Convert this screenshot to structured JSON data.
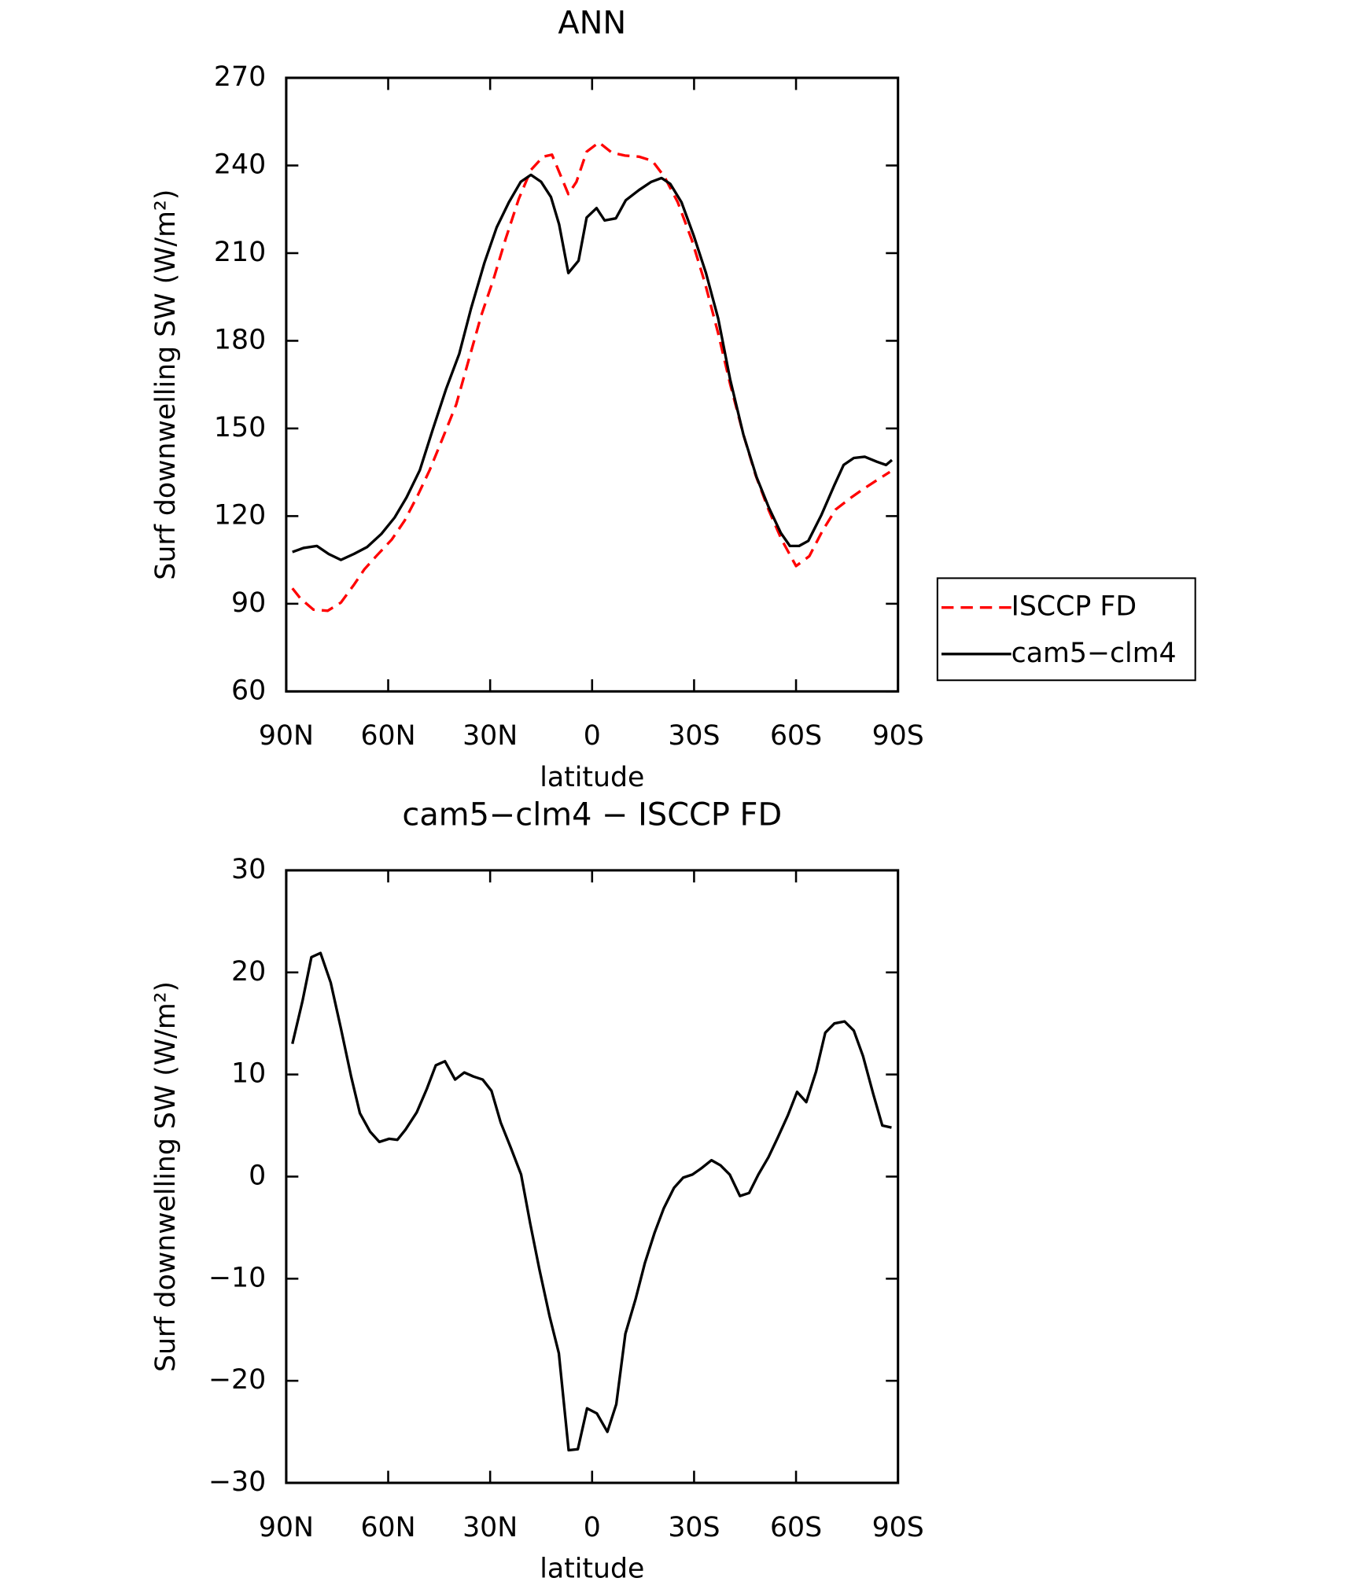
{
  "chart_data": [
    {
      "type": "line",
      "title": "ANN",
      "xlabel": "latitude",
      "ylabel": "Surf downwelling SW (W/m²)",
      "xlim": [
        90,
        -90
      ],
      "xticks": [
        {
          "value": 90,
          "label": "90N"
        },
        {
          "value": 60,
          "label": "60N"
        },
        {
          "value": 30,
          "label": "30N"
        },
        0,
        {
          "value": -30,
          "label": "30S"
        },
        {
          "value": -60,
          "label": "60S"
        },
        {
          "value": -90,
          "label": "90S"
        }
      ],
      "ylim": [
        60,
        270
      ],
      "yticks": [
        60,
        90,
        120,
        150,
        180,
        210,
        240,
        270
      ],
      "series": [
        {
          "name": "ISCCP FD",
          "color": "#ff0000",
          "dash": true,
          "x": [
            88.2,
            85.8,
            82,
            77.8,
            73.9,
            70,
            67,
            63.2,
            59,
            55.2,
            51.3,
            47.8,
            43.9,
            40,
            36.4,
            32.6,
            29,
            25.4,
            21.6,
            18,
            14.4,
            11.8,
            9.7,
            7,
            4.6,
            1.6,
            -2,
            -5.8,
            -9.7,
            -13.8,
            -17.7,
            -21.3,
            -25.2,
            -29.3,
            -33.2,
            -37.1,
            -40.6,
            -44.5,
            -48.1,
            -52,
            -55.8,
            -60,
            -63.9,
            -67.8,
            -71.6,
            -75.8,
            -79.7,
            -83.8,
            -87.6
          ],
          "values": [
            95.3,
            91.8,
            88,
            87.6,
            90.4,
            96.6,
            101.8,
            106.7,
            111.9,
            118.4,
            127.1,
            135.7,
            146.8,
            158.2,
            173.1,
            188.7,
            201.1,
            215,
            228.5,
            238.5,
            243,
            243.7,
            237.8,
            230.2,
            234.4,
            244.7,
            247.9,
            244.4,
            243.4,
            243,
            241.6,
            236.1,
            227.4,
            214.6,
            199.8,
            182.5,
            165.2,
            147.9,
            134,
            121.9,
            111.9,
            102.9,
            106.3,
            115,
            122.2,
            126,
            129.2,
            132.3,
            135.1
          ]
        },
        {
          "name": "cam5−clm4",
          "color": "#000000",
          "dash": false,
          "x": [
            88.2,
            84.9,
            81,
            77.5,
            73.9,
            70,
            66.2,
            62,
            58.1,
            54.6,
            50.7,
            46.9,
            43,
            39.1,
            35.6,
            31.7,
            28.1,
            24.5,
            21,
            18,
            15,
            12.1,
            9.7,
            7,
            4,
            1.6,
            -1.3,
            -3.7,
            -7,
            -9.9,
            -13.8,
            -17.4,
            -20.4,
            -23,
            -26.3,
            -29.9,
            -33.5,
            -37.1,
            -40.6,
            -44.5,
            -48.4,
            -52,
            -55.5,
            -58.2,
            -60.9,
            -63.6,
            -67.4,
            -71.3,
            -74,
            -77,
            -80.2,
            -83.8,
            -86.5,
            -88.2
          ],
          "values": [
            107.7,
            109.1,
            109.8,
            107,
            105,
            107.1,
            109.4,
            113.9,
            119.5,
            126.4,
            135.7,
            149.6,
            163.4,
            175.5,
            191.1,
            206.7,
            218.8,
            227.4,
            234.4,
            236.8,
            234.4,
            229.2,
            219.8,
            203.2,
            207.4,
            222.2,
            225.4,
            221.2,
            221.9,
            228.1,
            231.6,
            234.4,
            235.7,
            233.7,
            227.4,
            216,
            203.2,
            187.6,
            166.8,
            147.9,
            133.3,
            122.9,
            114.3,
            109.8,
            109.8,
            111.5,
            120.2,
            130.6,
            137.5,
            139.9,
            140.3,
            138.6,
            137.5,
            139.2
          ]
        }
      ]
    },
    {
      "type": "line",
      "title": "cam5−clm4 − ISCCP FD",
      "xlabel": "latitude",
      "ylabel": "Surf downwelling SW (W/m²)",
      "xlim": [
        90,
        -90
      ],
      "xticks": [
        {
          "value": 90,
          "label": "90N"
        },
        {
          "value": 60,
          "label": "60N"
        },
        {
          "value": 30,
          "label": "30N"
        },
        0,
        {
          "value": -30,
          "label": "30S"
        },
        {
          "value": -60,
          "label": "60S"
        },
        {
          "value": -90,
          "label": "90S"
        }
      ],
      "ylim": [
        -30,
        30
      ],
      "yticks": [
        {
          "value": -30,
          "label": "−30"
        },
        {
          "value": -20,
          "label": "−20"
        },
        {
          "value": -10,
          "label": "−10"
        },
        0,
        10,
        20,
        30
      ],
      "series": [
        {
          "color": "#000000",
          "dash": false,
          "x": [
            88.2,
            85.2,
            82.6,
            79.9,
            76.9,
            73.9,
            70.9,
            68.3,
            65.3,
            62.6,
            59.7,
            57.3,
            54.9,
            51.6,
            48.6,
            46,
            43.3,
            40.3,
            37.6,
            34.9,
            32.2,
            29.6,
            26.9,
            23.9,
            20.9,
            18.2,
            15.5,
            12.5,
            9.8,
            6.9,
            4.2,
            1.5,
            -1.4,
            -4.5,
            -7.1,
            -9.8,
            -12.8,
            -15.5,
            -18.4,
            -21.1,
            -24.1,
            -26.8,
            -29.5,
            -32.1,
            -35.1,
            -37.8,
            -40.5,
            -43.5,
            -46.2,
            -48.9,
            -51.9,
            -54.6,
            -57.6,
            -60.3,
            -63,
            -65.9,
            -68.6,
            -71.3,
            -74.3,
            -77,
            -79.7,
            -82.7,
            -85.4,
            -88.1
          ],
          "values": [
            13,
            17.2,
            21.5,
            21.9,
            19,
            14.5,
            9.8,
            6.2,
            4.4,
            3.4,
            3.7,
            3.6,
            4.6,
            6.3,
            8.6,
            10.9,
            11.3,
            9.5,
            10.2,
            9.8,
            9.5,
            8.4,
            5.3,
            2.8,
            0.2,
            -4.6,
            -9.1,
            -13.7,
            -17.3,
            -26.8,
            -26.7,
            -22.7,
            -23.2,
            -25,
            -22.3,
            -15.4,
            -12,
            -8.5,
            -5.5,
            -3.1,
            -1.1,
            -0.1,
            0.2,
            0.8,
            1.6,
            1.1,
            0.2,
            -1.9,
            -1.6,
            0.2,
            1.9,
            3.8,
            6,
            8.3,
            7.3,
            10.3,
            14.1,
            15,
            15.2,
            14.3,
            11.8,
            8.1,
            5,
            4.8
          ]
        }
      ]
    }
  ]
}
